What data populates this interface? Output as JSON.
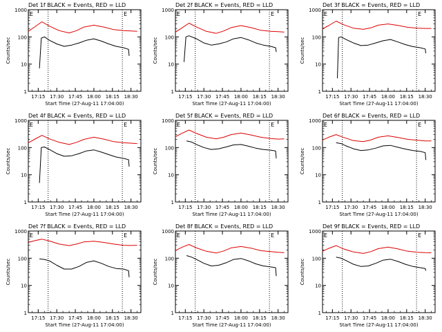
{
  "colors": {
    "events": "#000000",
    "lld": "#dd0000",
    "axis": "#000000",
    "background": "#ffffff"
  },
  "common": {
    "ylabel": "Counts/sec",
    "xlabel": "Start Time (27-Aug-11 17:04:00)",
    "x_ticks": [
      "17:15",
      "17:30",
      "17:45",
      "18:00",
      "18:15",
      "18:30"
    ],
    "y_ticks": [
      "1",
      "10",
      "100",
      "1000"
    ],
    "marker_letters": [
      "E",
      "E"
    ]
  },
  "chart_data": [
    {
      "type": "line",
      "title": "Det 1f BLACK = Events, RED = LLD",
      "xlabel": "Start Time (27-Aug-11 17:04:00)",
      "ylabel": "Counts/sec",
      "x_unit": "minutes after 17:04",
      "xlim": [
        3,
        94
      ],
      "ylim": [
        1,
        1000
      ],
      "yscale": "log",
      "vlines": [
        19,
        79
      ],
      "series": [
        {
          "name": "RED = LLD",
          "color": "#dd0000",
          "x": [
            3,
            8,
            14,
            20,
            28,
            36,
            42,
            48,
            56,
            64,
            72,
            80,
            86,
            91
          ],
          "y": [
            160,
            230,
            360,
            250,
            170,
            140,
            170,
            230,
            270,
            230,
            185,
            170,
            165,
            160
          ]
        },
        {
          "name": "BLACK = Events",
          "color": "#000000",
          "x": [
            12,
            13.5,
            16,
            20,
            26,
            32,
            38,
            44,
            50,
            56,
            62,
            68,
            74,
            80,
            84,
            84.5
          ],
          "y": [
            7,
            90,
            100,
            75,
            55,
            45,
            50,
            60,
            75,
            85,
            70,
            55,
            45,
            40,
            35,
            20
          ]
        }
      ]
    },
    {
      "type": "line",
      "title": "Det 2f BLACK = Events, RED = LLD",
      "xlabel": "Start Time (27-Aug-11 17:04:00)",
      "ylabel": "Counts/sec",
      "x_unit": "minutes after 17:04",
      "xlim": [
        3,
        94
      ],
      "ylim": [
        1,
        1000
      ],
      "yscale": "log",
      "vlines": [
        19,
        79
      ],
      "series": [
        {
          "name": "RED = LLD",
          "color": "#dd0000",
          "x": [
            3,
            8,
            14,
            20,
            28,
            36,
            42,
            48,
            56,
            64,
            72,
            80,
            86,
            91
          ],
          "y": [
            150,
            210,
            320,
            230,
            160,
            135,
            165,
            220,
            260,
            220,
            175,
            160,
            155,
            150
          ]
        },
        {
          "name": "BLACK = Events",
          "color": "#000000",
          "x": [
            10,
            11.5,
            14,
            20,
            26,
            32,
            38,
            44,
            50,
            56,
            62,
            68,
            74,
            80,
            84,
            84.5
          ],
          "y": [
            12,
            100,
            110,
            85,
            60,
            50,
            55,
            65,
            85,
            95,
            78,
            60,
            50,
            45,
            40,
            28
          ]
        }
      ]
    },
    {
      "type": "line",
      "title": "Det 3f BLACK = Events, RED = LLD",
      "xlabel": "Start Time (27-Aug-11 17:04:00)",
      "ylabel": "Counts/sec",
      "x_unit": "minutes after 17:04",
      "xlim": [
        3,
        94
      ],
      "ylim": [
        1,
        1000
      ],
      "yscale": "log",
      "vlines": [
        19,
        79
      ],
      "series": [
        {
          "name": "RED = LLD",
          "color": "#dd0000",
          "x": [
            3,
            8,
            14,
            20,
            28,
            36,
            42,
            48,
            56,
            64,
            72,
            80,
            86,
            91
          ],
          "y": [
            200,
            260,
            380,
            280,
            210,
            190,
            215,
            270,
            300,
            265,
            225,
            210,
            205,
            205
          ]
        },
        {
          "name": "BLACK = Events",
          "color": "#000000",
          "x": [
            15,
            16,
            18,
            22,
            28,
            34,
            40,
            46,
            52,
            58,
            64,
            70,
            76,
            82,
            86,
            86.5
          ],
          "y": [
            3,
            95,
            100,
            80,
            60,
            48,
            50,
            60,
            72,
            80,
            65,
            52,
            44,
            40,
            36,
            25
          ]
        }
      ]
    },
    {
      "type": "line",
      "title": "Det 4f BLACK = Events, RED = LLD",
      "xlabel": "Start Time (27-Aug-11 17:04:00)",
      "ylabel": "Counts/sec",
      "x_unit": "minutes after 17:04",
      "xlim": [
        3,
        94
      ],
      "ylim": [
        1,
        1000
      ],
      "yscale": "log",
      "vlines": [
        19,
        79
      ],
      "series": [
        {
          "name": "RED = LLD",
          "color": "#dd0000",
          "x": [
            3,
            8,
            14,
            20,
            28,
            36,
            42,
            48,
            56,
            64,
            72,
            80,
            86,
            91
          ],
          "y": [
            150,
            200,
            280,
            210,
            155,
            130,
            155,
            200,
            240,
            205,
            165,
            150,
            145,
            140
          ]
        },
        {
          "name": "BLACK = Events",
          "color": "#000000",
          "x": [
            12,
            13.5,
            16,
            20,
            26,
            32,
            38,
            44,
            50,
            56,
            62,
            68,
            74,
            80,
            84,
            84.5
          ],
          "y": [
            5,
            100,
            105,
            85,
            60,
            48,
            50,
            60,
            75,
            82,
            68,
            55,
            45,
            40,
            36,
            20
          ]
        }
      ]
    },
    {
      "type": "line",
      "title": "Det 5f BLACK = Events, RED = LLD",
      "xlabel": "Start Time (27-Aug-11 17:04:00)",
      "ylabel": "Counts/sec",
      "x_unit": "minutes after 17:04",
      "xlim": [
        3,
        94
      ],
      "ylim": [
        1,
        1000
      ],
      "yscale": "log",
      "vlines": [
        19,
        79
      ],
      "series": [
        {
          "name": "RED = LLD",
          "color": "#dd0000",
          "x": [
            3,
            8,
            14,
            20,
            28,
            36,
            42,
            48,
            56,
            64,
            72,
            80,
            86,
            91
          ],
          "y": [
            250,
            330,
            440,
            330,
            240,
            210,
            240,
            300,
            340,
            290,
            240,
            215,
            205,
            210
          ]
        },
        {
          "name": "BLACK = Events",
          "color": "#000000",
          "x": [
            12,
            16,
            20,
            26,
            32,
            38,
            44,
            50,
            56,
            62,
            68,
            74,
            80,
            84,
            84.5
          ],
          "y": [
            175,
            160,
            130,
            100,
            85,
            90,
            105,
            125,
            130,
            112,
            95,
            85,
            80,
            75,
            40
          ]
        }
      ]
    },
    {
      "type": "line",
      "title": "Det 6f BLACK = Events, RED = LLD",
      "xlabel": "Start Time (27-Aug-11 17:04:00)",
      "ylabel": "Counts/sec",
      "x_unit": "minutes after 17:04",
      "xlim": [
        3,
        94
      ],
      "ylim": [
        1,
        1000
      ],
      "yscale": "log",
      "vlines": [
        19,
        79
      ],
      "series": [
        {
          "name": "RED = LLD",
          "color": "#dd0000",
          "x": [
            3,
            8,
            14,
            20,
            28,
            36,
            42,
            48,
            56,
            64,
            72,
            80,
            86,
            91
          ],
          "y": [
            190,
            240,
            300,
            235,
            180,
            165,
            190,
            240,
            270,
            235,
            200,
            185,
            175,
            175
          ]
        },
        {
          "name": "BLACK = Events",
          "color": "#000000",
          "x": [
            14,
            18,
            22,
            28,
            34,
            40,
            46,
            52,
            58,
            64,
            70,
            76,
            82,
            86,
            86.5
          ],
          "y": [
            150,
            140,
            115,
            90,
            78,
            82,
            95,
            115,
            120,
            102,
            88,
            78,
            72,
            65,
            35
          ]
        }
      ]
    },
    {
      "type": "line",
      "title": "Det 7f BLACK = Events, RED = LLD",
      "xlabel": "Start Time (27-Aug-11 17:04:00)",
      "ylabel": "Counts/sec",
      "x_unit": "minutes after 17:04",
      "xlim": [
        3,
        94
      ],
      "ylim": [
        1,
        1000
      ],
      "yscale": "log",
      "vlines": [
        19,
        79
      ],
      "series": [
        {
          "name": "RED = LLD",
          "color": "#dd0000",
          "x": [
            3,
            8,
            14,
            20,
            28,
            36,
            42,
            48,
            56,
            64,
            72,
            80,
            86,
            91
          ],
          "y": [
            380,
            440,
            500,
            430,
            330,
            290,
            330,
            400,
            420,
            380,
            330,
            300,
            295,
            300
          ]
        },
        {
          "name": "BLACK = Events",
          "color": "#000000",
          "x": [
            12,
            16,
            20,
            26,
            32,
            38,
            44,
            50,
            56,
            62,
            68,
            74,
            80,
            84,
            84.5
          ],
          "y": [
            95,
            90,
            80,
            55,
            40,
            40,
            50,
            70,
            80,
            65,
            50,
            42,
            40,
            35,
            20
          ]
        }
      ]
    },
    {
      "type": "line",
      "title": "Det 8f BLACK = Events, RED = LLD",
      "xlabel": "Start Time (27-Aug-11 17:04:00)",
      "ylabel": "Counts/sec",
      "x_unit": "minutes after 17:04",
      "xlim": [
        3,
        94
      ],
      "ylim": [
        1,
        1000
      ],
      "yscale": "log",
      "vlines": [
        19,
        79
      ],
      "series": [
        {
          "name": "RED = LLD",
          "color": "#dd0000",
          "x": [
            3,
            8,
            14,
            20,
            28,
            36,
            42,
            48,
            56,
            64,
            72,
            80,
            86,
            91
          ],
          "y": [
            190,
            250,
            320,
            240,
            180,
            155,
            185,
            240,
            270,
            235,
            190,
            175,
            165,
            160
          ]
        },
        {
          "name": "BLACK = Events",
          "color": "#000000",
          "x": [
            12,
            16,
            20,
            26,
            32,
            38,
            44,
            50,
            56,
            62,
            68,
            74,
            80,
            84,
            84.5
          ],
          "y": [
            125,
            110,
            90,
            65,
            52,
            55,
            68,
            90,
            98,
            80,
            62,
            52,
            48,
            45,
            22
          ]
        }
      ]
    },
    {
      "type": "line",
      "title": "Det 9f BLACK = Events, RED = LLD",
      "xlabel": "Start Time (27-Aug-11 17:04:00)",
      "ylabel": "Counts/sec",
      "x_unit": "minutes after 17:04",
      "xlim": [
        3,
        94
      ],
      "ylim": [
        1,
        1000
      ],
      "yscale": "log",
      "vlines": [
        19,
        79
      ],
      "series": [
        {
          "name": "RED = LLD",
          "color": "#dd0000",
          "x": [
            3,
            8,
            14,
            20,
            28,
            36,
            42,
            48,
            56,
            64,
            72,
            80,
            86,
            91
          ],
          "y": [
            180,
            230,
            290,
            220,
            170,
            150,
            175,
            225,
            255,
            220,
            180,
            165,
            160,
            158
          ]
        },
        {
          "name": "BLACK = Events",
          "color": "#000000",
          "x": [
            14,
            18,
            22,
            28,
            34,
            40,
            46,
            52,
            58,
            64,
            70,
            76,
            82,
            86,
            86.5
          ],
          "y": [
            110,
            100,
            82,
            60,
            50,
            52,
            65,
            85,
            92,
            76,
            60,
            50,
            45,
            42,
            35
          ]
        }
      ]
    }
  ]
}
